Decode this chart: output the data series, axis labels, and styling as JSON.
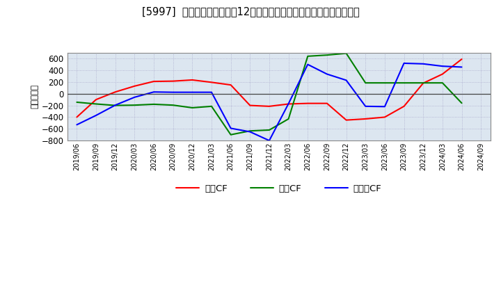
{
  "title": "[5997]  キャッシュフローの12か月移動合計の対前年同期増減額の推移",
  "ylabel": "（百万円）",
  "plot_bg_color": "#dce6f0",
  "fig_bg_color": "#ffffff",
  "grid_color": "#aaaacc",
  "x_labels": [
    "2019/06",
    "2019/09",
    "2019/12",
    "2020/03",
    "2020/06",
    "2020/09",
    "2020/12",
    "2021/03",
    "2021/06",
    "2021/09",
    "2021/12",
    "2022/03",
    "2022/06",
    "2022/09",
    "2022/12",
    "2023/03",
    "2023/06",
    "2023/09",
    "2023/12",
    "2024/03",
    "2024/06",
    "2024/09"
  ],
  "operating_cf": [
    -400,
    -100,
    30,
    130,
    210,
    215,
    235,
    195,
    150,
    -200,
    -215,
    -175,
    -165,
    -165,
    -450,
    -430,
    -400,
    -215,
    180,
    335,
    590,
    null
  ],
  "investing_cf": [
    -145,
    -175,
    -200,
    -195,
    -180,
    -195,
    -240,
    -215,
    -700,
    -635,
    -620,
    -430,
    640,
    660,
    690,
    185,
    185,
    185,
    185,
    185,
    -160,
    null
  ],
  "free_cf": [
    -530,
    -370,
    -195,
    -60,
    30,
    25,
    25,
    25,
    -590,
    -650,
    -800,
    -170,
    500,
    335,
    230,
    -215,
    -220,
    520,
    510,
    470,
    455,
    null
  ],
  "ylim": [
    -800,
    700
  ],
  "yticks": [
    -800,
    -600,
    -400,
    -200,
    0,
    200,
    400,
    600
  ],
  "line_colors": {
    "operating": "#ff0000",
    "investing": "#008000",
    "free": "#0000ff"
  },
  "legend_labels": [
    "営業CF",
    "投資CF",
    "フリーCF"
  ]
}
